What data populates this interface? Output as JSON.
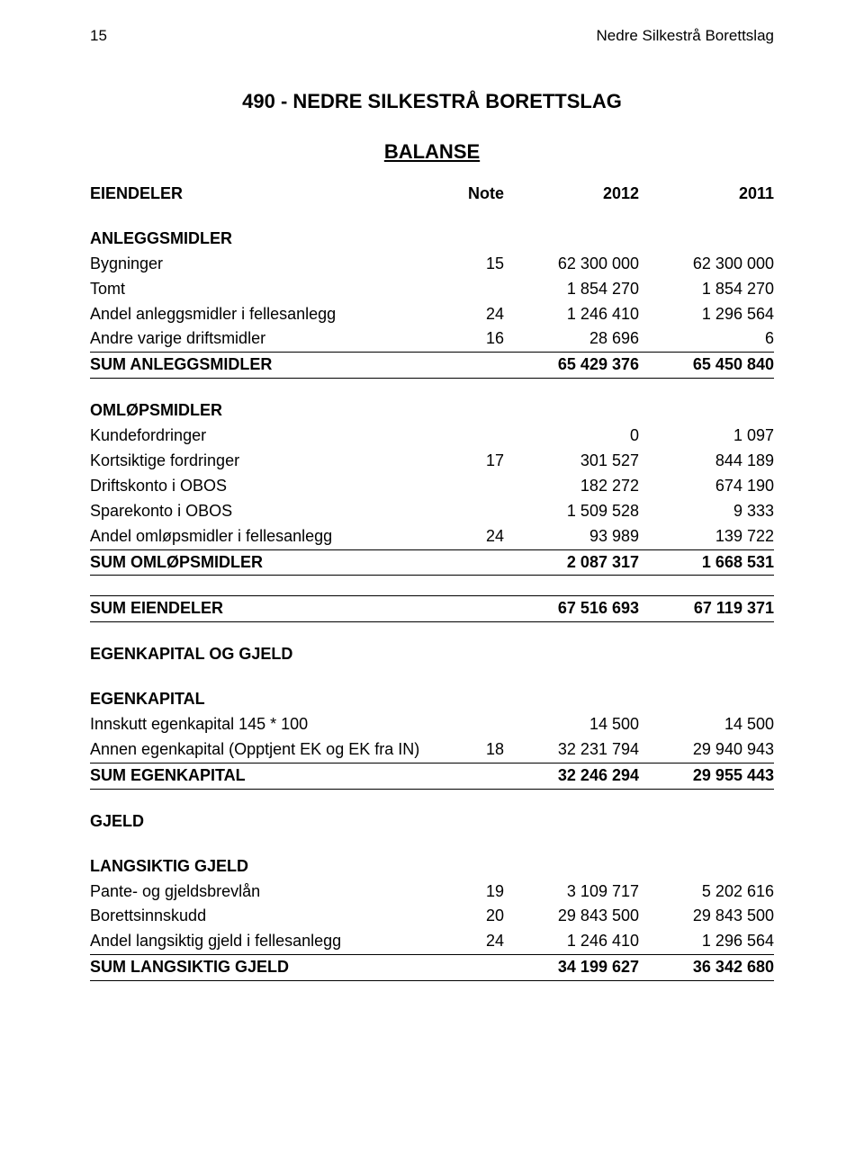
{
  "header": {
    "page_num": "15",
    "org_name": "Nedre Silkestrå Borettslag"
  },
  "title": "490  -  NEDRE SILKESTRÅ BORETTSLAG",
  "subtitle": "BALANSE",
  "columns": {
    "note": "Note",
    "year_a": "2012",
    "year_b": "2011"
  },
  "sections": {
    "eiendeler_title": "EIENDELER",
    "anleggsmidler_title": "ANLEGGSMIDLER",
    "anleggsmidler": [
      {
        "label": "Bygninger",
        "note": "15",
        "a": "62 300 000",
        "b": "62 300 000"
      },
      {
        "label": "Tomt",
        "note": "",
        "a": "1 854 270",
        "b": "1 854 270"
      },
      {
        "label": "Andel anleggsmidler i fellesanlegg",
        "note": "24",
        "a": "1 246 410",
        "b": "1 296 564"
      },
      {
        "label": "Andre varige driftsmidler",
        "note": "16",
        "a": "28 696",
        "b": "6"
      }
    ],
    "sum_anleggsmidler": {
      "label": "SUM ANLEGGSMIDLER",
      "a": "65 429 376",
      "b": "65 450 840"
    },
    "omlopsmidler_title": "OMLØPSMIDLER",
    "omlopsmidler": [
      {
        "label": "Kundefordringer",
        "note": "",
        "a": "0",
        "b": "1 097"
      },
      {
        "label": "Kortsiktige fordringer",
        "note": "17",
        "a": "301 527",
        "b": "844 189"
      },
      {
        "label": "Driftskonto i OBOS",
        "note": "",
        "a": "182 272",
        "b": "674 190"
      },
      {
        "label": "Sparekonto i OBOS",
        "note": "",
        "a": "1 509 528",
        "b": "9 333"
      },
      {
        "label": "Andel omløpsmidler i fellesanlegg",
        "note": "24",
        "a": "93 989",
        "b": "139 722"
      }
    ],
    "sum_omlopsmidler": {
      "label": "SUM OMLØPSMIDLER",
      "a": "2 087 317",
      "b": "1 668 531"
    },
    "sum_eiendeler": {
      "label": "SUM EIENDELER",
      "a": "67 516 693",
      "b": "67 119 371"
    },
    "egenkapital_og_gjeld_title": "EGENKAPITAL OG GJELD",
    "egenkapital_title": "EGENKAPITAL",
    "egenkapital": [
      {
        "label": "Innskutt egenkapital 145 * 100",
        "note": "",
        "a": "14 500",
        "b": "14 500"
      },
      {
        "label": "Annen egenkapital (Opptjent EK og EK fra IN)",
        "note": "18",
        "a": "32 231 794",
        "b": "29 940 943"
      }
    ],
    "sum_egenkapital": {
      "label": "SUM EGENKAPITAL",
      "a": "32 246 294",
      "b": "29 955 443"
    },
    "gjeld_title": "GJELD",
    "langsiktig_gjeld_title": "LANGSIKTIG GJELD",
    "langsiktig_gjeld": [
      {
        "label": "Pante- og gjeldsbrevlån",
        "note": "19",
        "a": "3 109 717",
        "b": "5 202 616"
      },
      {
        "label": "Borettsinnskudd",
        "note": "20",
        "a": "29 843 500",
        "b": "29 843 500"
      },
      {
        "label": "Andel langsiktig gjeld i fellesanlegg",
        "note": "24",
        "a": "1 246 410",
        "b": "1 296 564"
      }
    ],
    "sum_langsiktig_gjeld": {
      "label": "SUM LANGSIKTIG GJELD",
      "a": "34 199 627",
      "b": "36 342 680"
    }
  },
  "style": {
    "text_color": "#000000",
    "background_color": "#ffffff",
    "body_fontsize": 18,
    "title_fontsize": 22,
    "header_fontsize": 17,
    "col_note_width": 70,
    "col_value_width": 150,
    "rule_color": "#000000"
  }
}
